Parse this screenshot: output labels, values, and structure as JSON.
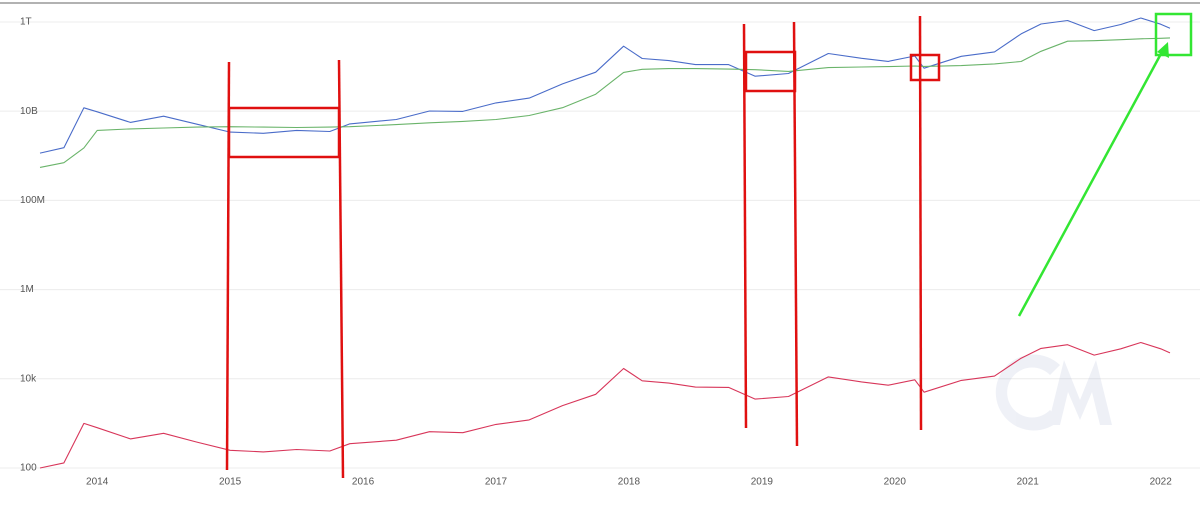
{
  "chart_data": {
    "type": "line",
    "log_y": true,
    "grid": true,
    "x": [
      2013.57,
      2013.75,
      2013.9,
      2014.0,
      2014.25,
      2014.5,
      2014.75,
      2015.0,
      2015.25,
      2015.5,
      2015.75,
      2015.9,
      2016.25,
      2016.5,
      2016.75,
      2017.0,
      2017.25,
      2017.5,
      2017.75,
      2017.96,
      2018.1,
      2018.3,
      2018.5,
      2018.75,
      2018.95,
      2019.2,
      2019.5,
      2019.75,
      2019.95,
      2020.15,
      2020.22,
      2020.5,
      2020.75,
      2020.95,
      2021.1,
      2021.3,
      2021.5,
      2021.7,
      2021.85,
      2022.0,
      2022.07
    ],
    "series": [
      {
        "color": "#4a6cc9",
        "values": [
          1150000000,
          1520000000,
          11900000000,
          9700000000,
          5600000000,
          7700000000,
          5100000000,
          3400000000,
          3200000000,
          3700000000,
          3500000000,
          5200000000,
          6500000000,
          10100000000,
          9900000000,
          15300000000,
          19600000000,
          41000000000,
          75000000000,
          286000000000,
          152000000000,
          136000000000,
          111000000000,
          111000000000,
          61000000000,
          70000000000,
          196000000000,
          153000000000,
          131000000000,
          173000000000,
          92000000000,
          170000000000,
          213000000000,
          540000000000,
          900000000000,
          1080000000000,
          640000000000,
          880000000000,
          1230000000000,
          890000000000,
          720000000000
        ]
      },
      {
        "color": "#6ab46a",
        "values": [
          550000000,
          700000000,
          1500000000,
          3700000000,
          4000000000,
          4200000000,
          4400000000,
          4500000000,
          4400000000,
          4300000000,
          4400000000,
          4500000000,
          5000000000,
          5500000000,
          5900000000,
          6500000000,
          8000000000,
          12000000000,
          24000000000,
          74000000000,
          87000000000,
          90000000000,
          90000000000,
          88000000000,
          85000000000,
          78000000000,
          95000000000,
          98000000000,
          100000000000,
          103000000000,
          101000000000,
          105000000000,
          115000000000,
          130000000000,
          220000000000,
          370000000000,
          380000000000,
          400000000000,
          420000000000,
          430000000000,
          440000000000
        ]
      },
      {
        "color": "#d8365a",
        "values": [
          100,
          130,
          1000,
          800,
          450,
          600,
          380,
          250,
          230,
          260,
          240,
          350,
          420,
          650,
          620,
          950,
          1200,
          2500,
          4500,
          17000,
          9000,
          8000,
          6500,
          6400,
          3500,
          4000,
          11000,
          8500,
          7200,
          9500,
          5000,
          9200,
          11500,
          29000,
          48000,
          58000,
          34000,
          47000,
          65000,
          47000,
          38000
        ]
      }
    ],
    "xlim": [
      2013.57,
      2022.07
    ],
    "xticks": [
      2014,
      2015,
      2016,
      2017,
      2018,
      2019,
      2020,
      2021,
      2022
    ],
    "ylim": [
      100,
      3000000000000
    ],
    "yticks": [
      100,
      {
        "value": 10000,
        "label": "10k"
      },
      {
        "value": 1000000,
        "label": "1M"
      },
      {
        "value": 100000000,
        "label": "100M"
      },
      {
        "value": 10000000000,
        "label": "10B"
      },
      {
        "value": 1000000000000,
        "label": "1T"
      }
    ]
  }
}
